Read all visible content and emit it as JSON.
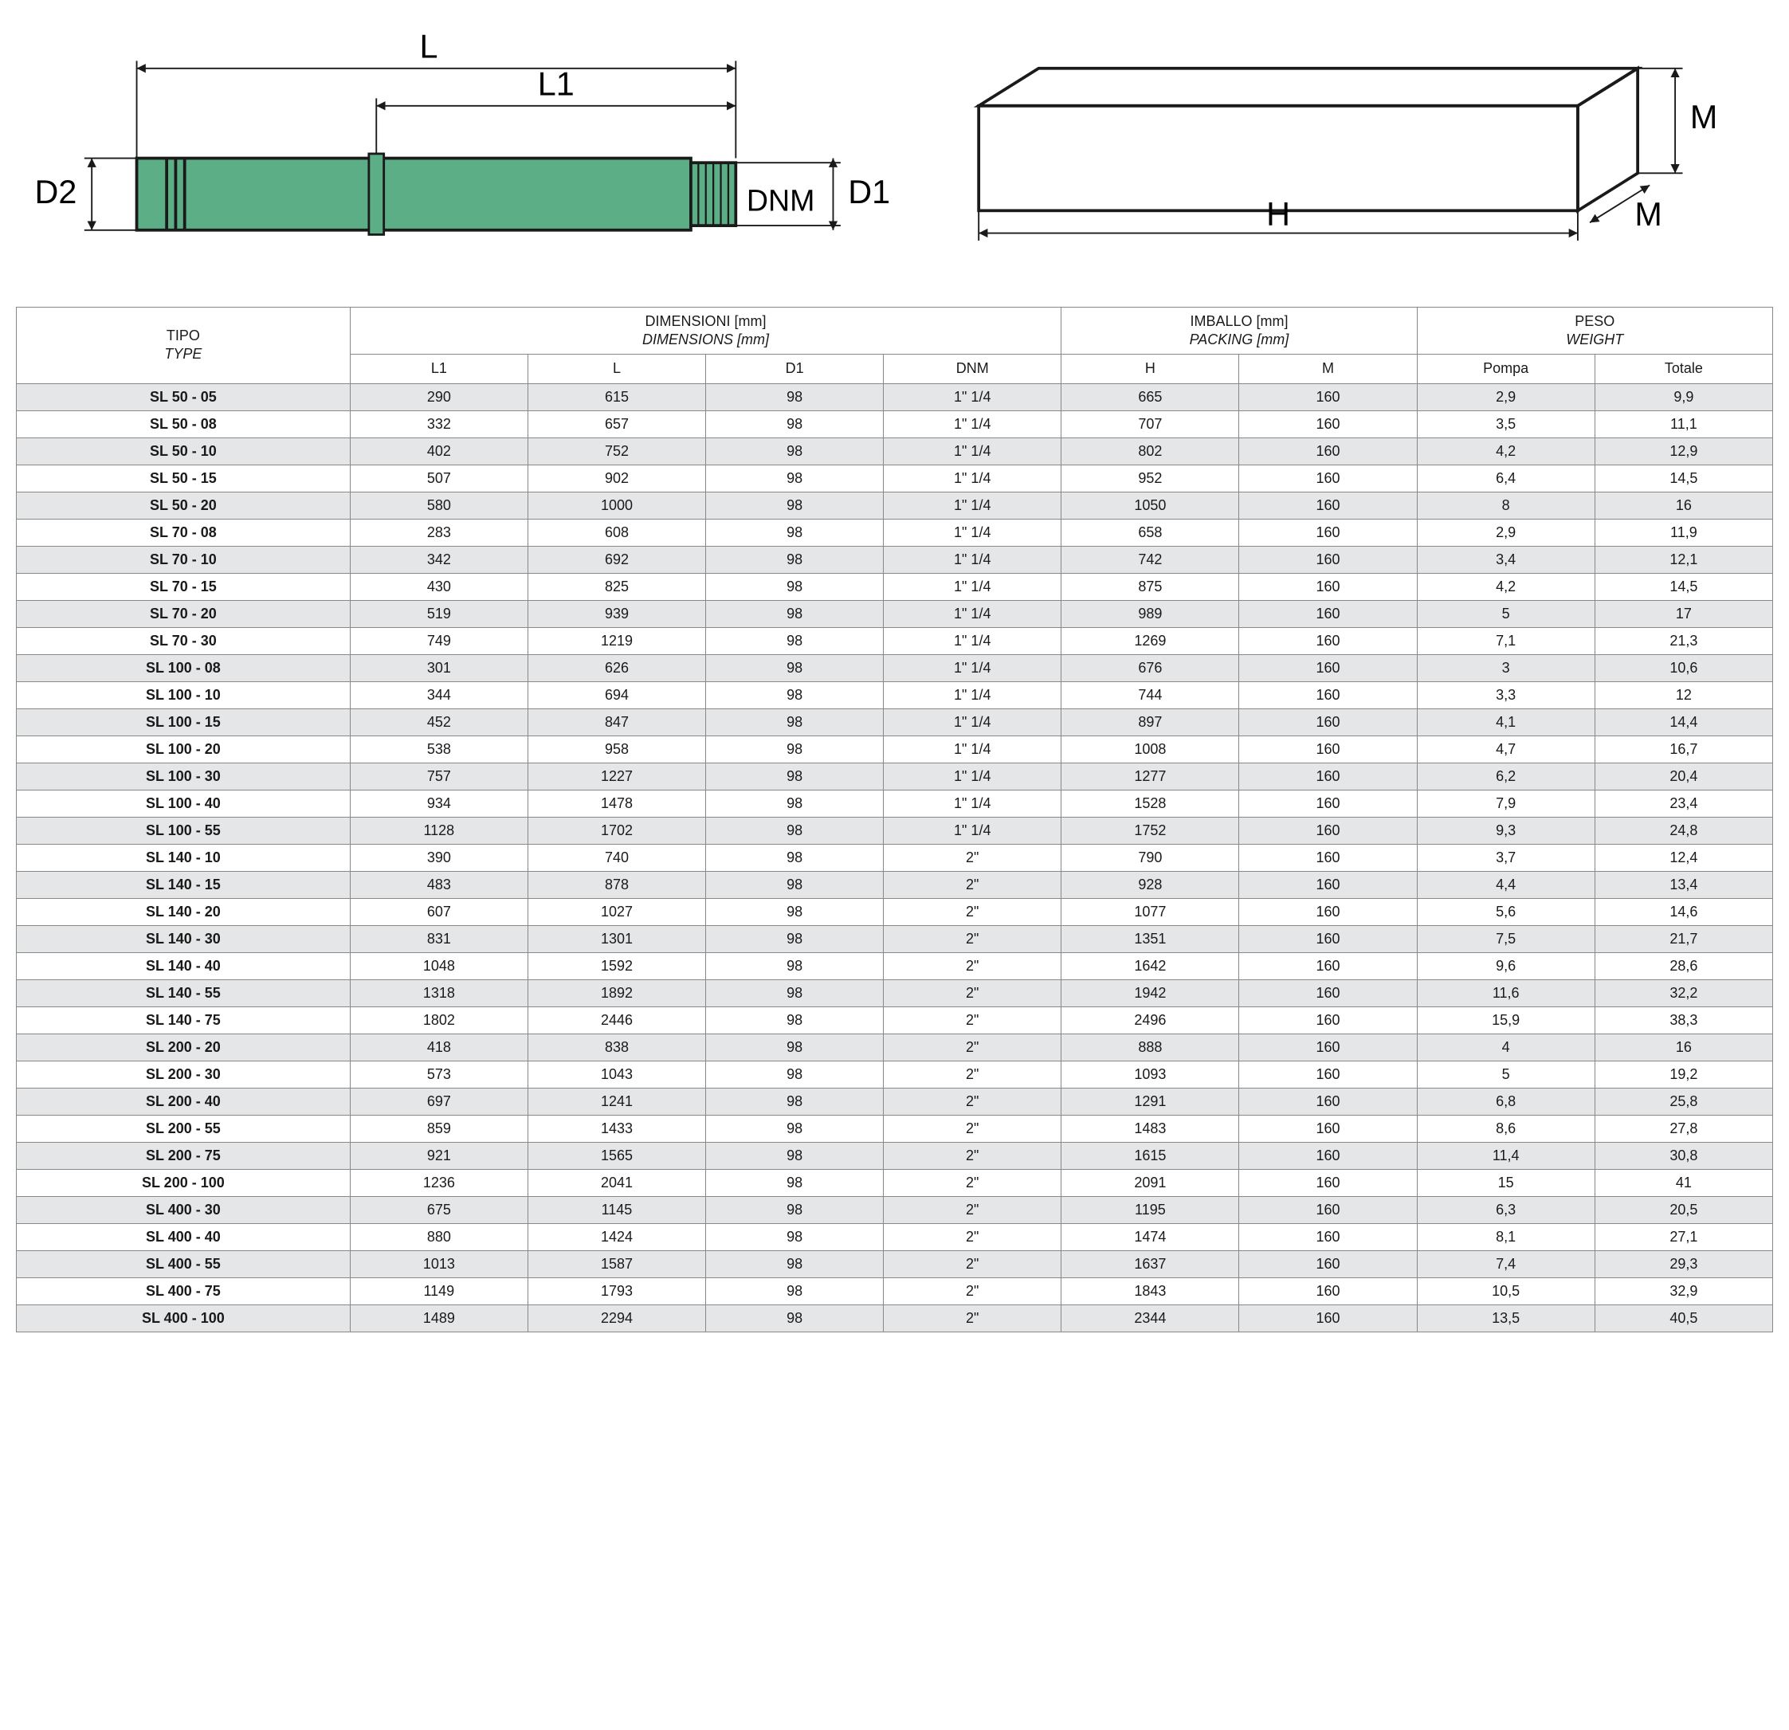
{
  "diagrams": {
    "pump": {
      "body_color": "#5cae86",
      "line_color": "#1a1a1a",
      "labels": {
        "L": "L",
        "L1": "L1",
        "D2": "D2",
        "DNM": "DNM",
        "D1": "D1"
      }
    },
    "box": {
      "line_color": "#1a1a1a",
      "labels": {
        "H": "H",
        "M_side": "M",
        "M_top": "M"
      }
    }
  },
  "table": {
    "headers": {
      "tipo_it": "TIPO",
      "tipo_en": "TYPE",
      "dim_it": "DIMENSIONI [mm]",
      "dim_en": "DIMENSIONS [mm]",
      "pack_it": "IMBALLO [mm]",
      "pack_en": "PACKING [mm]",
      "peso_it": "PESO",
      "peso_en": "WEIGHT",
      "L1": "L1",
      "L": "L",
      "D1": "D1",
      "DNM": "DNM",
      "H": "H",
      "M": "M",
      "Pompa": "Pompa",
      "Totale": "Totale"
    },
    "rows": [
      {
        "type": "SL 50 - 05",
        "L1": "290",
        "L": "615",
        "D1": "98",
        "DNM": "1\" 1/4",
        "H": "665",
        "M": "160",
        "Pompa": "2,9",
        "Totale": "9,9"
      },
      {
        "type": "SL 50 - 08",
        "L1": "332",
        "L": "657",
        "D1": "98",
        "DNM": "1\" 1/4",
        "H": "707",
        "M": "160",
        "Pompa": "3,5",
        "Totale": "11,1"
      },
      {
        "type": "SL 50 - 10",
        "L1": "402",
        "L": "752",
        "D1": "98",
        "DNM": "1\" 1/4",
        "H": "802",
        "M": "160",
        "Pompa": "4,2",
        "Totale": "12,9"
      },
      {
        "type": "SL 50 - 15",
        "L1": "507",
        "L": "902",
        "D1": "98",
        "DNM": "1\" 1/4",
        "H": "952",
        "M": "160",
        "Pompa": "6,4",
        "Totale": "14,5"
      },
      {
        "type": "SL 50 - 20",
        "L1": "580",
        "L": "1000",
        "D1": "98",
        "DNM": "1\" 1/4",
        "H": "1050",
        "M": "160",
        "Pompa": "8",
        "Totale": "16"
      },
      {
        "type": "SL 70 - 08",
        "L1": "283",
        "L": "608",
        "D1": "98",
        "DNM": "1\" 1/4",
        "H": "658",
        "M": "160",
        "Pompa": "2,9",
        "Totale": "11,9"
      },
      {
        "type": "SL 70 - 10",
        "L1": "342",
        "L": "692",
        "D1": "98",
        "DNM": "1\" 1/4",
        "H": "742",
        "M": "160",
        "Pompa": "3,4",
        "Totale": "12,1"
      },
      {
        "type": "SL 70 - 15",
        "L1": "430",
        "L": "825",
        "D1": "98",
        "DNM": "1\" 1/4",
        "H": "875",
        "M": "160",
        "Pompa": "4,2",
        "Totale": "14,5"
      },
      {
        "type": "SL 70 - 20",
        "L1": "519",
        "L": "939",
        "D1": "98",
        "DNM": "1\" 1/4",
        "H": "989",
        "M": "160",
        "Pompa": "5",
        "Totale": "17"
      },
      {
        "type": "SL 70 - 30",
        "L1": "749",
        "L": "1219",
        "D1": "98",
        "DNM": "1\" 1/4",
        "H": "1269",
        "M": "160",
        "Pompa": "7,1",
        "Totale": "21,3"
      },
      {
        "type": "SL 100 - 08",
        "L1": "301",
        "L": "626",
        "D1": "98",
        "DNM": "1\" 1/4",
        "H": "676",
        "M": "160",
        "Pompa": "3",
        "Totale": "10,6"
      },
      {
        "type": "SL 100 - 10",
        "L1": "344",
        "L": "694",
        "D1": "98",
        "DNM": "1\" 1/4",
        "H": "744",
        "M": "160",
        "Pompa": "3,3",
        "Totale": "12"
      },
      {
        "type": "SL 100 - 15",
        "L1": "452",
        "L": "847",
        "D1": "98",
        "DNM": "1\" 1/4",
        "H": "897",
        "M": "160",
        "Pompa": "4,1",
        "Totale": "14,4"
      },
      {
        "type": "SL 100 - 20",
        "L1": "538",
        "L": "958",
        "D1": "98",
        "DNM": "1\" 1/4",
        "H": "1008",
        "M": "160",
        "Pompa": "4,7",
        "Totale": "16,7"
      },
      {
        "type": "SL 100 - 30",
        "L1": "757",
        "L": "1227",
        "D1": "98",
        "DNM": "1\" 1/4",
        "H": "1277",
        "M": "160",
        "Pompa": "6,2",
        "Totale": "20,4"
      },
      {
        "type": "SL 100 - 40",
        "L1": "934",
        "L": "1478",
        "D1": "98",
        "DNM": "1\" 1/4",
        "H": "1528",
        "M": "160",
        "Pompa": "7,9",
        "Totale": "23,4"
      },
      {
        "type": "SL 100 - 55",
        "L1": "1128",
        "L": "1702",
        "D1": "98",
        "DNM": "1\" 1/4",
        "H": "1752",
        "M": "160",
        "Pompa": "9,3",
        "Totale": "24,8"
      },
      {
        "type": "SL 140 - 10",
        "L1": "390",
        "L": "740",
        "D1": "98",
        "DNM": "2\"",
        "H": "790",
        "M": "160",
        "Pompa": "3,7",
        "Totale": "12,4"
      },
      {
        "type": "SL 140 - 15",
        "L1": "483",
        "L": "878",
        "D1": "98",
        "DNM": "2\"",
        "H": "928",
        "M": "160",
        "Pompa": "4,4",
        "Totale": "13,4"
      },
      {
        "type": "SL 140 - 20",
        "L1": "607",
        "L": "1027",
        "D1": "98",
        "DNM": "2\"",
        "H": "1077",
        "M": "160",
        "Pompa": "5,6",
        "Totale": "14,6"
      },
      {
        "type": "SL 140 - 30",
        "L1": "831",
        "L": "1301",
        "D1": "98",
        "DNM": "2\"",
        "H": "1351",
        "M": "160",
        "Pompa": "7,5",
        "Totale": "21,7"
      },
      {
        "type": "SL 140 - 40",
        "L1": "1048",
        "L": "1592",
        "D1": "98",
        "DNM": "2\"",
        "H": "1642",
        "M": "160",
        "Pompa": "9,6",
        "Totale": "28,6"
      },
      {
        "type": "SL 140 - 55",
        "L1": "1318",
        "L": "1892",
        "D1": "98",
        "DNM": "2\"",
        "H": "1942",
        "M": "160",
        "Pompa": "11,6",
        "Totale": "32,2"
      },
      {
        "type": "SL 140 - 75",
        "L1": "1802",
        "L": "2446",
        "D1": "98",
        "DNM": "2\"",
        "H": "2496",
        "M": "160",
        "Pompa": "15,9",
        "Totale": "38,3"
      },
      {
        "type": "SL 200 - 20",
        "L1": "418",
        "L": "838",
        "D1": "98",
        "DNM": "2\"",
        "H": "888",
        "M": "160",
        "Pompa": "4",
        "Totale": "16"
      },
      {
        "type": "SL 200 - 30",
        "L1": "573",
        "L": "1043",
        "D1": "98",
        "DNM": "2\"",
        "H": "1093",
        "M": "160",
        "Pompa": "5",
        "Totale": "19,2"
      },
      {
        "type": "SL 200 - 40",
        "L1": "697",
        "L": "1241",
        "D1": "98",
        "DNM": "2\"",
        "H": "1291",
        "M": "160",
        "Pompa": "6,8",
        "Totale": "25,8"
      },
      {
        "type": "SL 200 - 55",
        "L1": "859",
        "L": "1433",
        "D1": "98",
        "DNM": "2\"",
        "H": "1483",
        "M": "160",
        "Pompa": "8,6",
        "Totale": "27,8"
      },
      {
        "type": "SL 200 - 75",
        "L1": "921",
        "L": "1565",
        "D1": "98",
        "DNM": "2\"",
        "H": "1615",
        "M": "160",
        "Pompa": "11,4",
        "Totale": "30,8"
      },
      {
        "type": "SL 200 - 100",
        "L1": "1236",
        "L": "2041",
        "D1": "98",
        "DNM": "2\"",
        "H": "2091",
        "M": "160",
        "Pompa": "15",
        "Totale": "41"
      },
      {
        "type": "SL 400 - 30",
        "L1": "675",
        "L": "1145",
        "D1": "98",
        "DNM": "2\"",
        "H": "1195",
        "M": "160",
        "Pompa": "6,3",
        "Totale": "20,5"
      },
      {
        "type": "SL 400 - 40",
        "L1": "880",
        "L": "1424",
        "D1": "98",
        "DNM": "2\"",
        "H": "1474",
        "M": "160",
        "Pompa": "8,1",
        "Totale": "27,1"
      },
      {
        "type": "SL 400 - 55",
        "L1": "1013",
        "L": "1587",
        "D1": "98",
        "DNM": "2\"",
        "H": "1637",
        "M": "160",
        "Pompa": "7,4",
        "Totale": "29,3"
      },
      {
        "type": "SL 400 - 75",
        "L1": "1149",
        "L": "1793",
        "D1": "98",
        "DNM": "2\"",
        "H": "1843",
        "M": "160",
        "Pompa": "10,5",
        "Totale": "32,9"
      },
      {
        "type": "SL 400 - 100",
        "L1": "1489",
        "L": "2294",
        "D1": "98",
        "DNM": "2\"",
        "H": "2344",
        "M": "160",
        "Pompa": "13,5",
        "Totale": "40,5"
      }
    ]
  },
  "style": {
    "row_odd_bg": "#e5e6e7",
    "row_even_bg": "#ffffff",
    "border_color": "#888888",
    "font_size_header": 18,
    "font_size_body": 18
  }
}
